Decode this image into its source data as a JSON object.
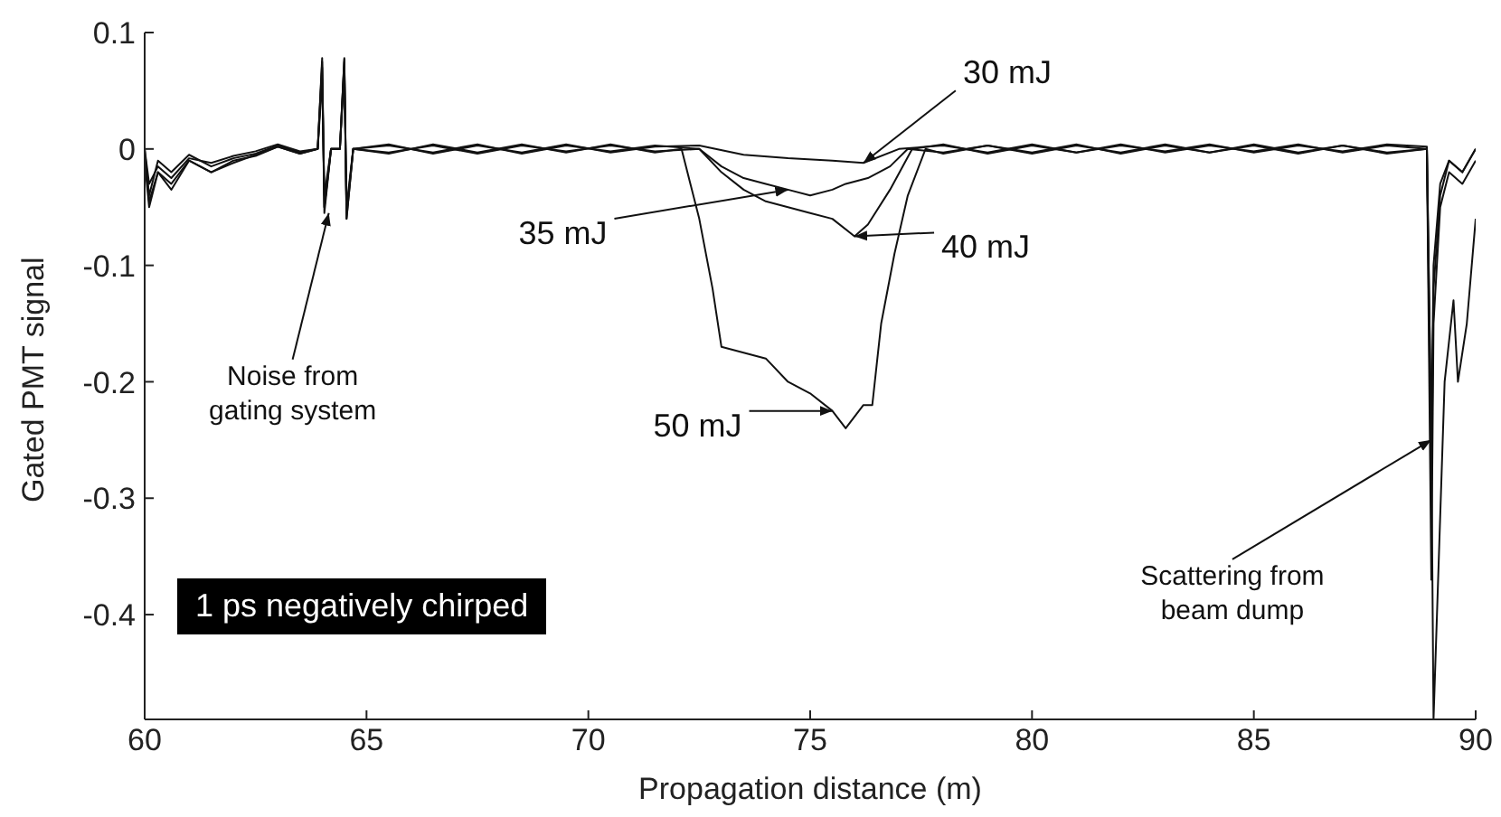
{
  "chart_data": {
    "type": "line",
    "xlabel": "Propagation distance (m)",
    "ylabel": "Gated PMT signal",
    "xlim": [
      60,
      90
    ],
    "xticks": [
      60,
      65,
      70,
      75,
      80,
      85,
      90
    ],
    "ylim": [
      -0.49,
      0.1
    ],
    "yticks": [
      0.1,
      0,
      -0.1,
      -0.2,
      -0.3,
      -0.4
    ],
    "grid": false,
    "legend": false,
    "marker": "none",
    "line_style": "solid",
    "series": [
      {
        "color": "#111111",
        "x": [
          60,
          60.1,
          60.3,
          60.6,
          61,
          61.5,
          62,
          62.5,
          63,
          63.5,
          63.9,
          64,
          64.05,
          64.2,
          64.4,
          64.5,
          64.55,
          64.7,
          65.5,
          66.5,
          67.5,
          68.5,
          69.5,
          70.5,
          71.5,
          72.5,
          73.5,
          74.5,
          75.5,
          76.2,
          77,
          78,
          79,
          80,
          81,
          82,
          83,
          84,
          85,
          86,
          87,
          88,
          88.9,
          89,
          89.05,
          89.2,
          89.4,
          89.7,
          90
        ],
        "values": [
          0,
          -0.04,
          -0.01,
          -0.02,
          -0.005,
          -0.015,
          -0.008,
          -0.004,
          0.003,
          -0.003,
          0,
          0.078,
          -0.05,
          0,
          0,
          0.078,
          -0.055,
          0,
          0.004,
          -0.004,
          0.003,
          -0.003,
          0.004,
          -0.003,
          0.002,
          0.003,
          -0.005,
          -0.008,
          -0.01,
          -0.012,
          0,
          0.003,
          -0.003,
          0.004,
          -0.003,
          0.003,
          -0.002,
          0.004,
          -0.003,
          0.003,
          -0.002,
          0.004,
          0.002,
          -0.25,
          -0.1,
          -0.03,
          -0.01,
          -0.02,
          0
        ]
      },
      {
        "color": "#111111",
        "x": [
          60,
          60.1,
          60.3,
          60.6,
          61,
          61.5,
          62,
          62.5,
          63,
          63.5,
          63.9,
          64,
          64.05,
          64.2,
          64.4,
          64.5,
          64.55,
          64.7,
          65.5,
          66.5,
          67.5,
          68.5,
          69.5,
          70.5,
          71.5,
          72.5,
          73,
          73.5,
          74,
          74.5,
          75,
          75.5,
          75.8,
          76.3,
          76.8,
          77.2,
          78,
          79,
          80,
          81,
          82,
          83,
          84,
          85,
          86,
          87,
          88,
          88.9,
          89,
          89.05,
          89.2,
          89.4,
          89.7,
          90
        ],
        "values": [
          -0.01,
          -0.05,
          -0.02,
          -0.03,
          -0.01,
          -0.02,
          -0.01,
          -0.006,
          0.002,
          -0.004,
          0,
          0.07,
          -0.055,
          0,
          0,
          0.075,
          -0.06,
          0,
          -0.003,
          0.003,
          -0.004,
          0.003,
          -0.002,
          0.003,
          -0.002,
          0,
          -0.015,
          -0.025,
          -0.03,
          -0.035,
          -0.04,
          -0.035,
          -0.03,
          -0.025,
          -0.015,
          0,
          -0.003,
          0.003,
          -0.004,
          0.003,
          -0.003,
          0.004,
          -0.003,
          0.003,
          -0.004,
          0.003,
          -0.003,
          0,
          -0.37,
          -0.15,
          -0.05,
          -0.02,
          -0.03,
          -0.01
        ]
      },
      {
        "color": "#111111",
        "x": [
          60,
          60.1,
          60.3,
          60.6,
          61,
          61.5,
          62,
          62.5,
          63,
          63.5,
          63.9,
          64,
          64.05,
          64.2,
          64.4,
          64.5,
          64.55,
          64.7,
          65.5,
          66.5,
          67.5,
          68.5,
          69.5,
          70.5,
          71.5,
          72.5,
          73,
          73.5,
          74,
          74.5,
          75,
          75.5,
          76,
          76.3,
          76.8,
          77.3,
          78,
          79,
          80,
          81,
          82,
          83,
          84,
          85,
          86,
          87,
          88,
          88.9,
          89,
          89.05,
          89.2,
          89.4,
          89.7,
          90
        ],
        "values": [
          0,
          -0.03,
          -0.015,
          -0.025,
          -0.008,
          -0.012,
          -0.006,
          -0.002,
          0.004,
          -0.002,
          0,
          0.06,
          -0.04,
          0,
          0,
          0.07,
          -0.05,
          0,
          0.003,
          -0.003,
          0.004,
          -0.004,
          0.003,
          -0.002,
          0.003,
          0,
          -0.02,
          -0.035,
          -0.045,
          -0.05,
          -0.055,
          -0.06,
          -0.075,
          -0.065,
          -0.035,
          0,
          0.004,
          -0.004,
          0.003,
          -0.003,
          0.004,
          -0.003,
          0.003,
          -0.002,
          0.004,
          -0.003,
          0.003,
          0,
          -0.3,
          -0.12,
          -0.04,
          -0.01,
          -0.02,
          0
        ]
      },
      {
        "color": "#111111",
        "x": [
          60,
          60.1,
          60.3,
          60.6,
          61,
          61.5,
          62,
          62.5,
          63,
          63.5,
          63.9,
          64,
          64.05,
          64.2,
          64.4,
          64.5,
          64.55,
          64.7,
          65.5,
          66.5,
          67.5,
          68.5,
          69.5,
          70.5,
          71.5,
          72.1,
          72.5,
          72.8,
          73,
          73.5,
          74,
          74.5,
          75,
          75.5,
          75.8,
          76.2,
          76.4,
          76.6,
          76.9,
          77.2,
          77.6,
          78,
          79,
          80,
          81,
          82,
          83,
          84,
          85,
          86,
          87,
          88,
          88.9,
          89,
          89.05,
          89.3,
          89.5,
          89.6,
          89.8,
          90
        ],
        "values": [
          -0.005,
          -0.045,
          -0.02,
          -0.035,
          -0.01,
          -0.02,
          -0.012,
          -0.005,
          0.002,
          -0.004,
          0,
          0.075,
          -0.05,
          0,
          0,
          0.077,
          -0.06,
          0,
          -0.004,
          0.004,
          -0.003,
          0.004,
          -0.003,
          0.004,
          -0.003,
          0,
          -0.06,
          -0.12,
          -0.17,
          -0.175,
          -0.18,
          -0.2,
          -0.21,
          -0.225,
          -0.24,
          -0.22,
          -0.22,
          -0.15,
          -0.09,
          -0.04,
          0,
          -0.004,
          0.003,
          -0.003,
          0.004,
          -0.004,
          0.003,
          -0.003,
          0.004,
          -0.003,
          0.003,
          -0.004,
          0,
          -0.25,
          -0.49,
          -0.2,
          -0.13,
          -0.2,
          -0.15,
          -0.06
        ]
      }
    ],
    "annotations": [
      {
        "text": "30 mJ",
        "x": 76.2,
        "y": -0.012
      },
      {
        "text": "35 mJ",
        "x": 74.5,
        "y": -0.035
      },
      {
        "text": "40 mJ",
        "x": 76,
        "y": -0.075
      },
      {
        "text": "50 mJ",
        "x": 75.5,
        "y": -0.225
      },
      {
        "text": "Noise from\ngating system",
        "x": 64.15,
        "y": -0.055
      },
      {
        "text": "Scattering from\nbeam dump",
        "x": 89,
        "y": -0.25
      },
      "1 ps negatively chirped"
    ]
  }
}
